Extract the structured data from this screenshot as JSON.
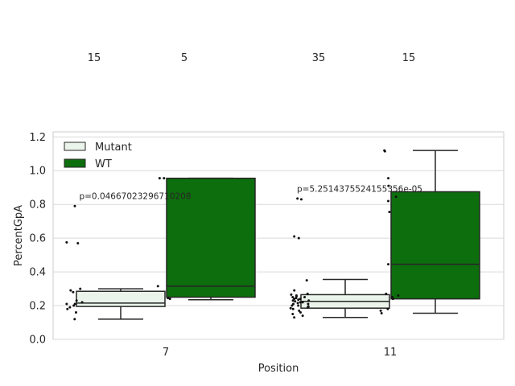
{
  "chart_data": {
    "type": "box",
    "xlabel": "Position",
    "ylabel": "PercentGpA",
    "categories": [
      "7",
      "11"
    ],
    "ylim": [
      0.0,
      1.23
    ],
    "yticks": [
      "0.0",
      "0.2",
      "0.4",
      "0.6",
      "0.8",
      "1.0",
      "1.2"
    ],
    "grid": true,
    "legend_position": "top-left",
    "colors": {
      "Mutant": "#eaf4ea",
      "WT": "#0d6e0d",
      "edge": "#262626"
    },
    "series": [
      {
        "name": "Mutant",
        "boxes": [
          {
            "category": "7",
            "whisker_low": 0.12,
            "q1": 0.195,
            "median": 0.215,
            "q3": 0.285,
            "whisker_high": 0.3,
            "count": "15",
            "points": [
              0.12,
              0.16,
              0.18,
              0.19,
              0.2,
              0.21,
              0.21,
              0.22,
              0.23,
              0.28,
              0.29,
              0.3,
              0.57,
              0.575,
              0.79
            ]
          },
          {
            "category": "11",
            "whisker_low": 0.13,
            "q1": 0.185,
            "median": 0.225,
            "q3": 0.265,
            "whisker_high": 0.355,
            "count": "35",
            "points": [
              0.13,
              0.14,
              0.15,
              0.16,
              0.17,
              0.18,
              0.185,
              0.19,
              0.195,
              0.2,
              0.2,
              0.21,
              0.21,
              0.215,
              0.22,
              0.22,
              0.225,
              0.23,
              0.23,
              0.235,
              0.24,
              0.24,
              0.245,
              0.25,
              0.25,
              0.255,
              0.26,
              0.265,
              0.27,
              0.29,
              0.35,
              0.6,
              0.61,
              0.83,
              0.835
            ]
          }
        ]
      },
      {
        "name": "WT",
        "boxes": [
          {
            "category": "7",
            "whisker_low": 0.235,
            "q1": 0.25,
            "median": 0.315,
            "q3": 0.955,
            "whisker_high": 0.955,
            "count": "5",
            "points": [
              0.24,
              0.245,
              0.315,
              0.955,
              0.955
            ]
          },
          {
            "category": "11",
            "whisker_low": 0.155,
            "q1": 0.24,
            "median": 0.445,
            "q3": 0.875,
            "whisker_high": 1.12,
            "count": "15",
            "points": [
              0.155,
              0.17,
              0.18,
              0.24,
              0.25,
              0.26,
              0.27,
              0.445,
              0.755,
              0.82,
              0.845,
              0.91,
              0.955,
              1.115,
              1.12
            ]
          }
        ]
      }
    ],
    "annotations": [
      {
        "category": "7",
        "text": "p=0.04667023296710208",
        "y": 0.85
      },
      {
        "category": "11",
        "text": "p=5.2514375524155356e-05",
        "y": 0.895
      }
    ]
  }
}
